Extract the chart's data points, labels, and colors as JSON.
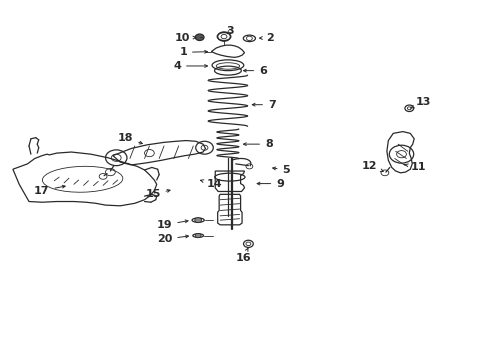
{
  "bg_color": "#ffffff",
  "line_color": "#2a2a2a",
  "figsize": [
    4.89,
    3.6
  ],
  "dpi": 100,
  "font_size": 8.0,
  "font_weight": "bold",
  "arrow_color": "#2a2a2a",
  "label_positions": {
    "10": [
      0.39,
      0.895,
      0.42,
      0.895,
      "right"
    ],
    "3": [
      0.455,
      0.91,
      0.455,
      0.895,
      "left"
    ],
    "2": [
      0.56,
      0.895,
      0.53,
      0.895,
      "left"
    ],
    "1": [
      0.385,
      0.855,
      0.42,
      0.855,
      "right"
    ],
    "4": [
      0.375,
      0.8,
      0.415,
      0.8,
      "right"
    ],
    "6": [
      0.53,
      0.795,
      0.5,
      0.795,
      "left"
    ],
    "7": [
      0.555,
      0.71,
      0.51,
      0.71,
      "left"
    ],
    "8": [
      0.548,
      0.6,
      0.505,
      0.6,
      "left"
    ],
    "5": [
      0.585,
      0.525,
      0.54,
      0.53,
      "left"
    ],
    "9": [
      0.572,
      0.49,
      0.52,
      0.49,
      "left"
    ],
    "14": [
      0.418,
      0.488,
      0.4,
      0.5,
      "left"
    ],
    "15": [
      0.338,
      0.468,
      0.36,
      0.48,
      "right"
    ],
    "18": [
      0.28,
      0.618,
      0.3,
      0.6,
      "right"
    ],
    "17": [
      0.107,
      0.478,
      0.14,
      0.492,
      "right"
    ],
    "19": [
      0.36,
      0.378,
      0.395,
      0.388,
      "right"
    ],
    "20": [
      0.36,
      0.34,
      0.395,
      0.345,
      "right"
    ],
    "16": [
      0.51,
      0.288,
      0.51,
      0.315,
      "center"
    ],
    "13": [
      0.85,
      0.715,
      0.835,
      0.7,
      "left"
    ],
    "12": [
      0.778,
      0.545,
      0.8,
      0.555,
      "right"
    ],
    "11": [
      0.84,
      0.54,
      0.82,
      0.548,
      "left"
    ]
  }
}
